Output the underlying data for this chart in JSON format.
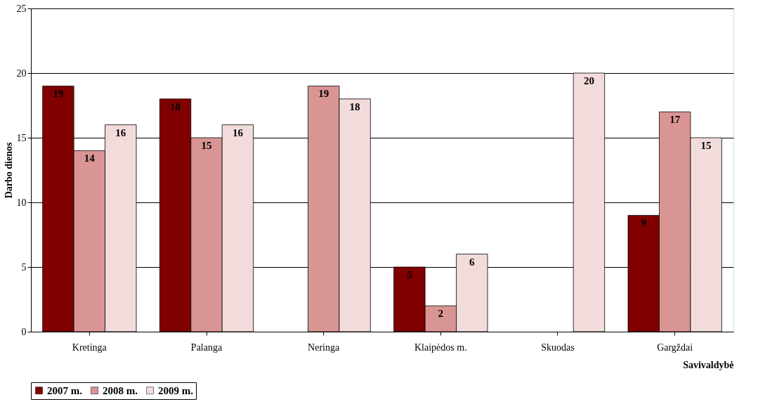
{
  "chart_data": {
    "type": "bar",
    "xlabel": "Savivaldybė",
    "ylabel": "Darbo dienos",
    "categories": [
      "Kretinga",
      "Palanga",
      "Neringa",
      "Klaipėdos m.",
      "Skuodas",
      "Gargždai"
    ],
    "series": [
      {
        "name": "2007 m.",
        "color": "#800000",
        "values": [
          19,
          18,
          null,
          5,
          null,
          9
        ]
      },
      {
        "name": "2008 m.",
        "color": "#d99594",
        "values": [
          14,
          15,
          19,
          2,
          null,
          17
        ]
      },
      {
        "name": "2009 m.",
        "color": "#f2dcdb",
        "values": [
          16,
          16,
          18,
          6,
          20,
          15
        ]
      }
    ],
    "ylim": [
      0,
      25
    ],
    "yticks": [
      0,
      5,
      10,
      15,
      20,
      25
    ],
    "grid": "y",
    "legend": "bottom",
    "data_labels": true
  }
}
